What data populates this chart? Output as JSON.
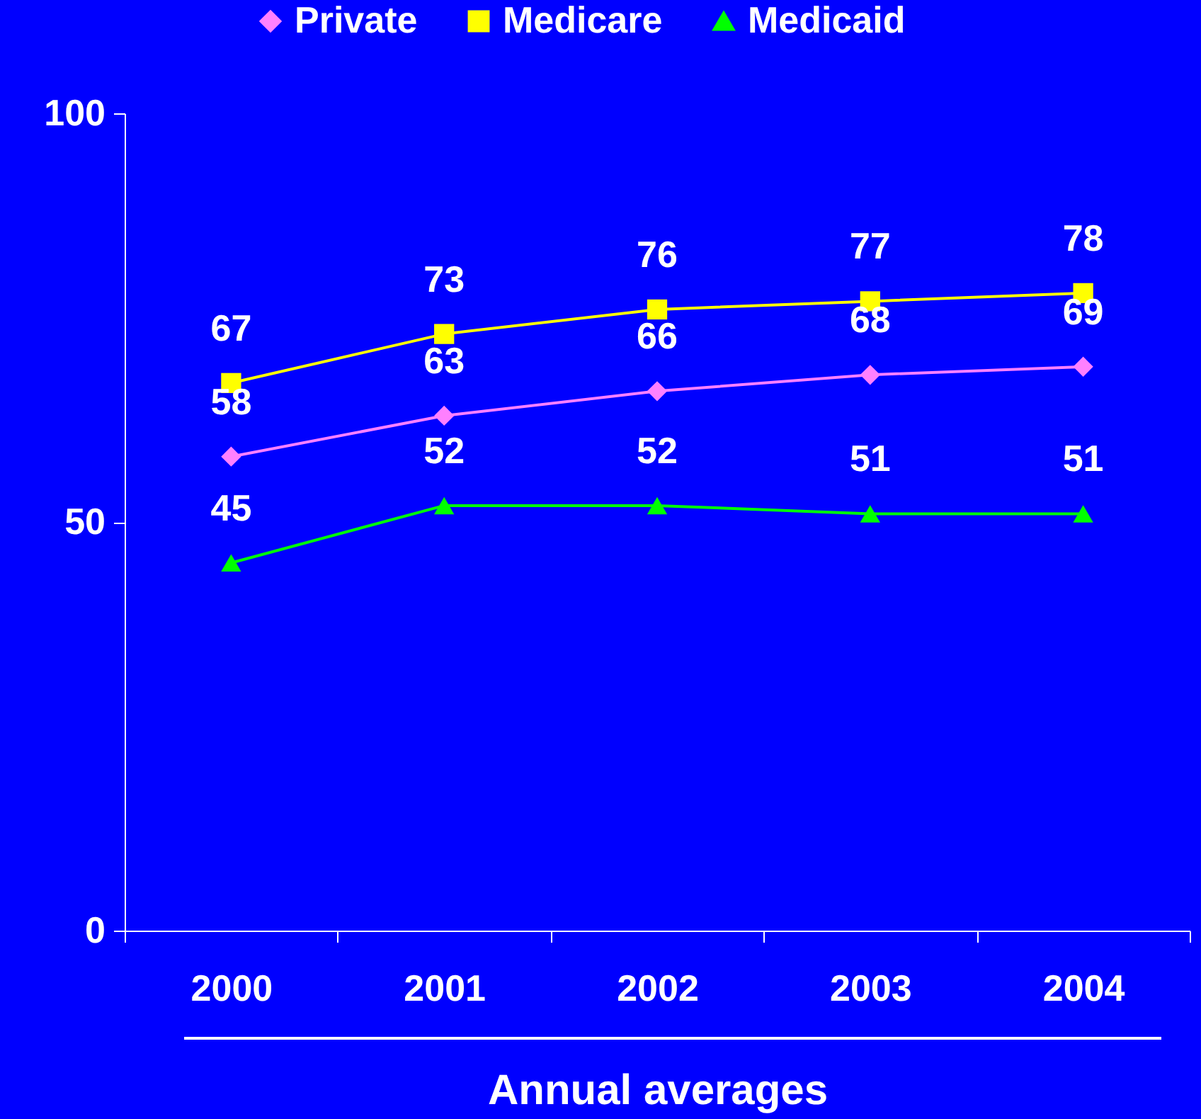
{
  "chart_data": {
    "type": "line",
    "xlabel": "Annual averages",
    "categories": [
      "2000",
      "2001",
      "2002",
      "2003",
      "2004"
    ],
    "series": [
      {
        "name": "Private",
        "color": "#ff80ff",
        "marker": "diamond",
        "values": [
          58,
          63,
          66,
          68,
          69
        ]
      },
      {
        "name": "Medicare",
        "color": "#ffff00",
        "marker": "square",
        "values": [
          67,
          73,
          76,
          77,
          78
        ]
      },
      {
        "name": "Medicaid",
        "color": "#00ff00",
        "marker": "triangle",
        "values": [
          45,
          52,
          52,
          51,
          51
        ]
      }
    ],
    "ylim": [
      0,
      100
    ],
    "yticks": [
      0,
      50,
      100
    ],
    "grid": false,
    "legend": "top",
    "data_labels": true
  }
}
